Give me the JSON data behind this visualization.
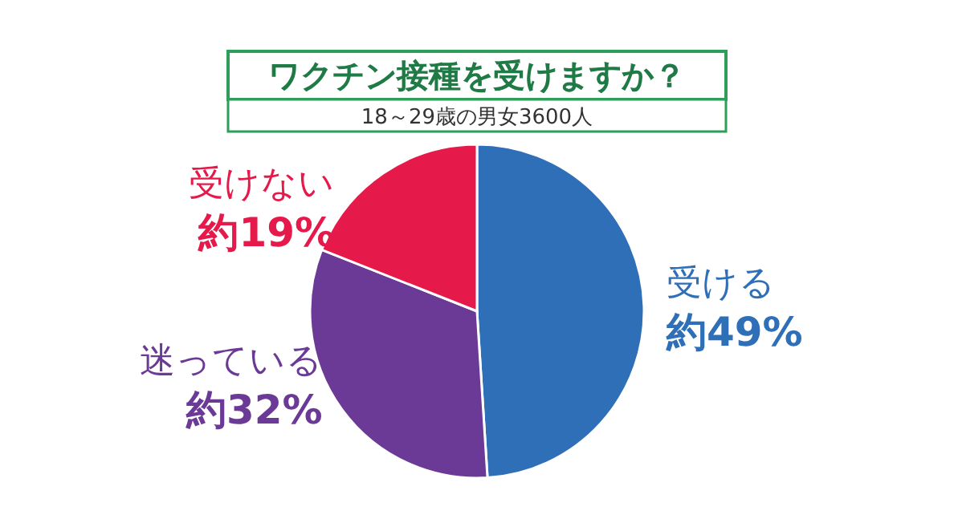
{
  "chart_data": {
    "type": "pie",
    "title": "ワクチン接種を受けますか？",
    "subtitle": "18～29歳の男女3600人",
    "categories": [
      "受ける",
      "迷っている",
      "受けない"
    ],
    "values": [
      49,
      32,
      19
    ],
    "value_labels": [
      "約49%",
      "約32%",
      "約19%"
    ],
    "colors": [
      "#2f6fb8",
      "#6b3a97",
      "#e6194b"
    ]
  }
}
